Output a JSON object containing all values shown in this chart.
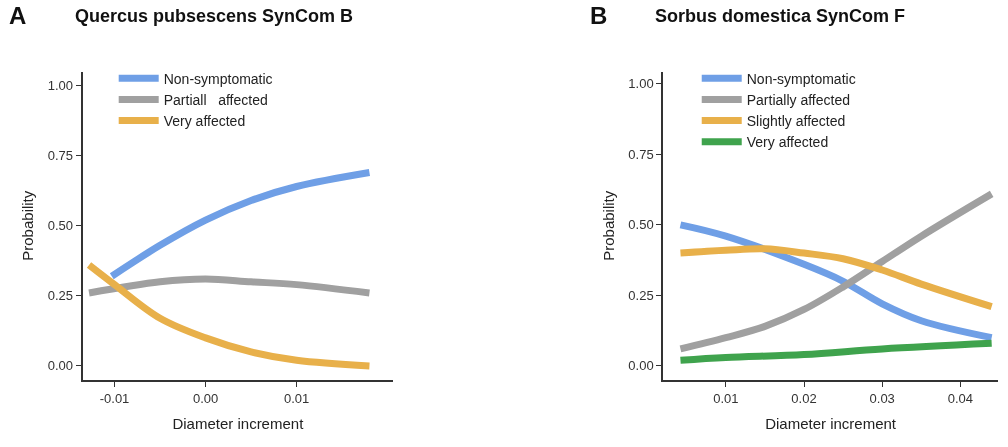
{
  "chart_data": [
    {
      "type": "line",
      "title": "Quercus pubsescens SynCom B",
      "annotations": [
        "A"
      ],
      "xlabel": "Diameter increment",
      "ylabel": "Probability",
      "legend": "top left",
      "xlim": [
        -0.0135,
        0.0206
      ],
      "ylim": [
        -0.05,
        1.05
      ],
      "xticks": [
        {
          "value": -0.01,
          "label": "-0.01"
        },
        {
          "value": 0,
          "label": "0.00"
        },
        {
          "value": 0.01,
          "label": "0.01"
        }
      ],
      "yticks": [
        {
          "value": 0,
          "label": "0.00"
        },
        {
          "value": 0.25,
          "label": "0.25"
        },
        {
          "value": 0.5,
          "label": "0.50"
        },
        {
          "value": 0.75,
          "label": "0.75"
        },
        {
          "value": 1,
          "label": "1.00"
        }
      ],
      "series": [
        {
          "name": "Non-symptomatic",
          "color": "#6f9fe6",
          "x": [
            -0.0103,
            -0.005,
            0,
            0.005,
            0.01,
            0.018
          ],
          "values": [
            0.32,
            0.43,
            0.52,
            0.59,
            0.64,
            0.69
          ]
        },
        {
          "name": "Partiall   affected",
          "color": "#a0a0a0",
          "x": [
            -0.0128,
            -0.005,
            0,
            0.005,
            0.01,
            0.018
          ],
          "values": [
            0.26,
            0.3,
            0.31,
            0.3,
            0.29,
            0.26
          ]
        },
        {
          "name": "Very affected",
          "color": "#e8b04a",
          "x": [
            -0.0128,
            -0.01,
            -0.005,
            0,
            0.005,
            0.01,
            0.018
          ],
          "values": [
            0.36,
            0.29,
            0.17,
            0.1,
            0.05,
            0.02,
            0.0
          ]
        }
      ]
    },
    {
      "type": "line",
      "title": "Sorbus domestica SynCom F",
      "annotations": [
        "B"
      ],
      "xlabel": "Diameter increment",
      "ylabel": "Probability",
      "legend": "top left",
      "xlim": [
        0.002,
        0.0448
      ],
      "ylim": [
        -0.05,
        1.044
      ],
      "xticks": [
        {
          "value": 0.01,
          "label": "0.01"
        },
        {
          "value": 0.02,
          "label": "0.02"
        },
        {
          "value": 0.03,
          "label": "0.03"
        },
        {
          "value": 0.04,
          "label": "0.04"
        }
      ],
      "yticks": [
        {
          "value": 0,
          "label": "0.00"
        },
        {
          "value": 0.25,
          "label": "0.25"
        },
        {
          "value": 0.5,
          "label": "0.50"
        },
        {
          "value": 0.75,
          "label": "0.75"
        },
        {
          "value": 1,
          "label": "1.00"
        }
      ],
      "series": [
        {
          "name": "Non-symptomatic",
          "color": "#6f9fe6",
          "x": [
            0.0042,
            0.01,
            0.02,
            0.025,
            0.03,
            0.035,
            0.044
          ],
          "values": [
            0.5,
            0.46,
            0.36,
            0.3,
            0.22,
            0.16,
            0.1
          ]
        },
        {
          "name": "Partially affected",
          "color": "#a0a0a0",
          "x": [
            0.0042,
            0.01,
            0.015,
            0.02,
            0.025,
            0.03,
            0.035,
            0.044
          ],
          "values": [
            0.06,
            0.1,
            0.14,
            0.2,
            0.28,
            0.37,
            0.46,
            0.61
          ]
        },
        {
          "name": "Slightly affected",
          "color": "#e8b04a",
          "x": [
            0.0042,
            0.01,
            0.015,
            0.02,
            0.025,
            0.03,
            0.035,
            0.044
          ],
          "values": [
            0.4,
            0.41,
            0.415,
            0.4,
            0.38,
            0.34,
            0.29,
            0.21
          ]
        },
        {
          "name": "Very affected",
          "color": "#3fa34d",
          "x": [
            0.0042,
            0.01,
            0.02,
            0.03,
            0.044
          ],
          "values": [
            0.02,
            0.03,
            0.04,
            0.06,
            0.08
          ]
        }
      ]
    }
  ]
}
